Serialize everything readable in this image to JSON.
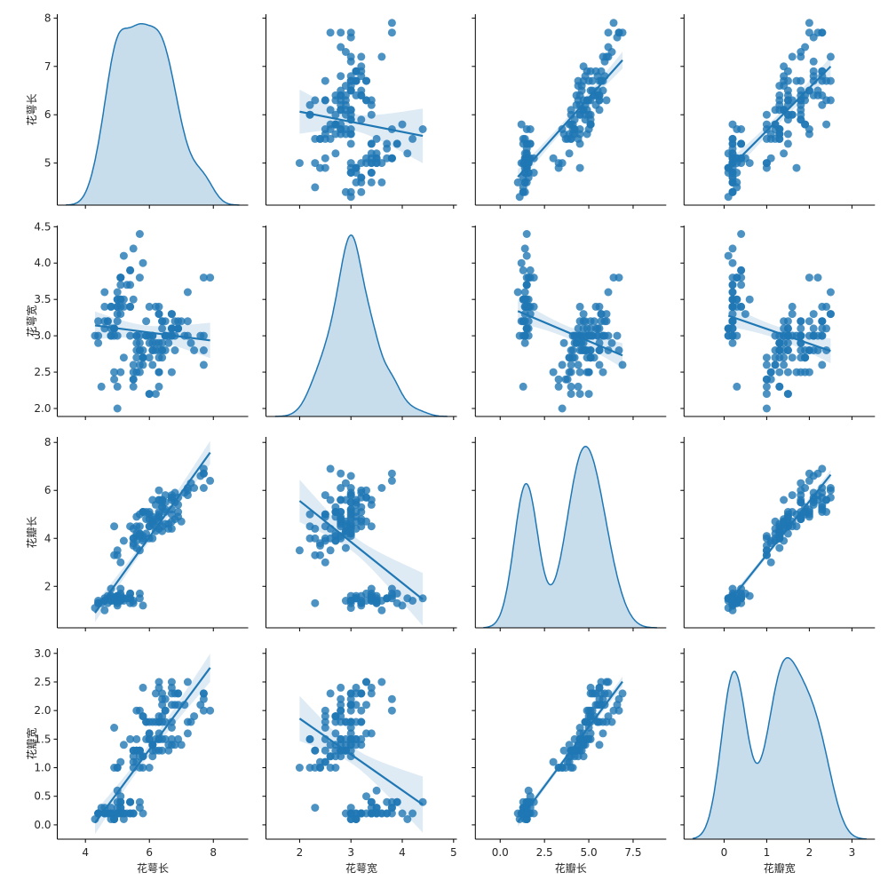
{
  "chart_data": {
    "type": "pairplot",
    "kind": "reg",
    "diag_kind": "kde",
    "color": "#1f77b4",
    "variables": [
      "花萼长",
      "花萼宽",
      "花瓣长",
      "花瓣宽"
    ],
    "axes": [
      {
        "ticks": [
          4,
          6,
          8
        ],
        "tick_labels": [
          "4",
          "6",
          "8"
        ],
        "lim": [
          3.12,
          9.09
        ],
        "ylim": [
          4.13,
          8.08
        ],
        "yticks": [
          5,
          6,
          7,
          8
        ],
        "ytick_labels": [
          "5",
          "6",
          "7",
          "8"
        ]
      },
      {
        "ticks": [
          2,
          3,
          4,
          5
        ],
        "tick_labels": [
          "2",
          "3",
          "4",
          "5"
        ],
        "lim": [
          1.344,
          5.064
        ],
        "ylim": [
          1.89,
          4.516
        ],
        "yticks": [
          2.0,
          2.5,
          3.0,
          3.5,
          4.0,
          4.5
        ],
        "ytick_labels": [
          "2.0",
          "2.5",
          "3.0",
          "3.5",
          "4.0",
          "4.5"
        ]
      },
      {
        "ticks": [
          0,
          2.5,
          5,
          7.5
        ],
        "tick_labels": [
          "0.0",
          "2.5",
          "5.0",
          "7.5"
        ],
        "lim": [
          -1.4,
          9.37
        ],
        "ylim": [
          0.27,
          8.23
        ],
        "yticks": [
          2,
          4,
          6,
          8
        ],
        "ytick_labels": [
          "2",
          "4",
          "6",
          "8"
        ]
      },
      {
        "ticks": [
          0,
          1,
          2,
          3
        ],
        "tick_labels": [
          "0",
          "1",
          "2",
          "3"
        ],
        "lim": [
          -0.94,
          3.54
        ],
        "ylim": [
          -0.25,
          3.09
        ],
        "yticks": [
          0.0,
          0.5,
          1.0,
          1.5,
          2.0,
          2.5,
          3.0
        ],
        "ytick_labels": [
          "0.0",
          "0.5",
          "1.0",
          "1.5",
          "2.0",
          "2.5",
          "3.0"
        ]
      }
    ],
    "data": [
      [
        5.1,
        4.9,
        4.7,
        4.6,
        5.0,
        5.4,
        4.6,
        5.0,
        4.4,
        4.9,
        5.4,
        4.8,
        4.8,
        4.3,
        5.8,
        5.7,
        5.4,
        5.1,
        5.7,
        5.1,
        5.4,
        5.1,
        4.6,
        5.1,
        4.8,
        5.0,
        5.0,
        5.2,
        5.2,
        4.7,
        4.8,
        5.4,
        5.2,
        5.5,
        4.9,
        5.0,
        5.5,
        4.9,
        4.4,
        5.1,
        5.0,
        4.5,
        4.4,
        5.0,
        5.1,
        4.8,
        5.1,
        4.6,
        5.3,
        5.0,
        7.0,
        6.4,
        6.9,
        5.5,
        6.5,
        5.7,
        6.3,
        4.9,
        6.6,
        5.2,
        5.0,
        5.9,
        6.0,
        6.1,
        5.6,
        6.7,
        5.6,
        5.8,
        6.2,
        5.6,
        5.9,
        6.1,
        6.3,
        6.1,
        6.4,
        6.6,
        6.8,
        6.7,
        6.0,
        5.7,
        5.5,
        5.5,
        5.8,
        6.0,
        5.4,
        6.0,
        6.7,
        6.3,
        5.6,
        5.5,
        5.5,
        6.1,
        5.8,
        5.0,
        5.6,
        5.7,
        5.7,
        6.2,
        5.1,
        5.7,
        6.3,
        5.8,
        7.1,
        6.3,
        6.5,
        7.6,
        4.9,
        7.3,
        6.7,
        7.2,
        6.5,
        6.4,
        6.8,
        5.7,
        5.8,
        6.4,
        6.5,
        7.7,
        7.7,
        6.0,
        6.9,
        5.6,
        7.7,
        6.3,
        6.7,
        7.2,
        6.2,
        6.1,
        6.4,
        7.2,
        7.4,
        7.9,
        6.4,
        6.3,
        6.1,
        7.7,
        6.3,
        6.4,
        6.0,
        6.9,
        6.7,
        6.9,
        5.8,
        6.8,
        6.7,
        6.7,
        6.3,
        6.5,
        6.2,
        5.9
      ],
      [
        3.5,
        3.0,
        3.2,
        3.1,
        3.6,
        3.9,
        3.4,
        3.4,
        2.9,
        3.1,
        3.7,
        3.4,
        3.0,
        3.0,
        4.0,
        4.4,
        3.9,
        3.5,
        3.8,
        3.8,
        3.4,
        3.7,
        3.6,
        3.3,
        3.4,
        3.0,
        3.4,
        3.5,
        3.4,
        3.2,
        3.1,
        3.4,
        4.1,
        4.2,
        3.1,
        3.2,
        3.5,
        3.1,
        3.0,
        3.4,
        3.5,
        2.3,
        3.2,
        3.5,
        3.8,
        3.0,
        3.8,
        3.2,
        3.7,
        3.3,
        3.2,
        3.2,
        3.1,
        2.3,
        2.8,
        2.8,
        3.3,
        2.4,
        2.9,
        2.7,
        2.0,
        3.0,
        2.2,
        2.9,
        2.9,
        3.1,
        3.0,
        2.7,
        2.2,
        2.5,
        3.2,
        2.8,
        2.5,
        2.8,
        2.9,
        3.0,
        2.8,
        3.0,
        2.9,
        2.6,
        2.4,
        2.4,
        2.7,
        2.7,
        3.0,
        3.4,
        3.1,
        2.3,
        3.0,
        2.5,
        2.6,
        3.0,
        2.6,
        2.3,
        2.7,
        3.0,
        2.9,
        2.9,
        2.5,
        2.8,
        3.3,
        2.7,
        3.0,
        2.9,
        3.0,
        3.0,
        2.5,
        2.9,
        2.5,
        3.6,
        3.2,
        2.7,
        3.0,
        2.5,
        2.8,
        3.2,
        3.0,
        3.8,
        2.6,
        2.2,
        3.2,
        2.8,
        2.8,
        2.7,
        3.3,
        3.2,
        2.8,
        3.0,
        2.8,
        3.0,
        2.8,
        3.8,
        2.8,
        2.8,
        2.6,
        3.0,
        3.4,
        3.1,
        3.0,
        3.1,
        3.1,
        3.1,
        2.7,
        3.2,
        3.3,
        3.0,
        2.5,
        3.0,
        3.4,
        3.0
      ],
      [
        1.4,
        1.4,
        1.3,
        1.5,
        1.4,
        1.7,
        1.4,
        1.5,
        1.4,
        1.5,
        1.5,
        1.6,
        1.4,
        1.1,
        1.2,
        1.5,
        1.3,
        1.4,
        1.7,
        1.5,
        1.7,
        1.5,
        1.0,
        1.7,
        1.9,
        1.6,
        1.6,
        1.5,
        1.4,
        1.6,
        1.6,
        1.5,
        1.5,
        1.4,
        1.5,
        1.2,
        1.3,
        1.5,
        1.3,
        1.5,
        1.3,
        1.3,
        1.3,
        1.6,
        1.9,
        1.4,
        1.6,
        1.4,
        1.5,
        1.4,
        4.7,
        4.5,
        4.9,
        4.0,
        4.6,
        4.5,
        4.7,
        3.3,
        4.6,
        3.9,
        3.5,
        4.2,
        4.0,
        4.7,
        3.6,
        4.4,
        4.5,
        4.1,
        4.5,
        3.9,
        4.8,
        4.0,
        4.9,
        4.7,
        4.3,
        4.4,
        4.8,
        5.0,
        4.5,
        3.5,
        3.8,
        3.7,
        3.9,
        5.1,
        4.5,
        4.5,
        4.7,
        4.4,
        4.1,
        4.0,
        4.4,
        4.6,
        4.0,
        3.3,
        4.2,
        4.2,
        4.2,
        4.3,
        3.0,
        4.1,
        6.0,
        5.1,
        5.9,
        5.6,
        5.8,
        6.6,
        4.5,
        6.3,
        5.8,
        6.1,
        5.1,
        5.3,
        5.5,
        5.0,
        5.1,
        5.3,
        5.5,
        6.7,
        6.9,
        5.0,
        5.7,
        4.9,
        6.7,
        4.9,
        5.7,
        6.0,
        4.8,
        4.9,
        5.6,
        5.8,
        6.1,
        6.4,
        5.6,
        5.1,
        5.6,
        6.1,
        5.6,
        5.5,
        4.8,
        5.4,
        5.6,
        5.1,
        5.1,
        5.9,
        5.7,
        5.2,
        5.0,
        5.2,
        5.4,
        5.1
      ],
      [
        0.2,
        0.2,
        0.2,
        0.2,
        0.2,
        0.4,
        0.3,
        0.2,
        0.2,
        0.1,
        0.2,
        0.2,
        0.1,
        0.1,
        0.2,
        0.4,
        0.4,
        0.3,
        0.3,
        0.3,
        0.2,
        0.4,
        0.2,
        0.5,
        0.2,
        0.2,
        0.4,
        0.2,
        0.2,
        0.2,
        0.2,
        0.4,
        0.1,
        0.2,
        0.1,
        0.2,
        0.2,
        0.1,
        0.2,
        0.2,
        0.3,
        0.3,
        0.2,
        0.6,
        0.4,
        0.3,
        0.2,
        0.2,
        0.2,
        0.2,
        1.4,
        1.5,
        1.5,
        1.3,
        1.5,
        1.3,
        1.6,
        1.0,
        1.3,
        1.4,
        1.0,
        1.5,
        1.0,
        1.4,
        1.3,
        1.4,
        1.5,
        1.0,
        1.5,
        1.1,
        1.8,
        1.3,
        1.5,
        1.2,
        1.3,
        1.4,
        1.4,
        1.7,
        1.5,
        1.0,
        1.1,
        1.0,
        1.2,
        1.6,
        1.5,
        1.6,
        1.5,
        1.3,
        1.3,
        1.3,
        1.2,
        1.4,
        1.2,
        1.0,
        1.3,
        1.2,
        1.3,
        1.3,
        1.1,
        1.3,
        2.5,
        1.9,
        2.1,
        1.8,
        2.2,
        2.1,
        1.7,
        1.8,
        1.8,
        2.5,
        2.0,
        1.9,
        2.1,
        2.0,
        2.4,
        2.3,
        1.8,
        2.2,
        2.3,
        1.5,
        2.3,
        2.0,
        2.0,
        1.8,
        2.1,
        1.8,
        1.8,
        1.8,
        2.1,
        1.6,
        1.9,
        2.0,
        2.2,
        1.5,
        1.4,
        2.3,
        2.4,
        1.8,
        1.8,
        2.1,
        2.4,
        2.3,
        1.9,
        2.3,
        2.5,
        2.3,
        1.9,
        2.0,
        2.3,
        1.8
      ]
    ]
  }
}
